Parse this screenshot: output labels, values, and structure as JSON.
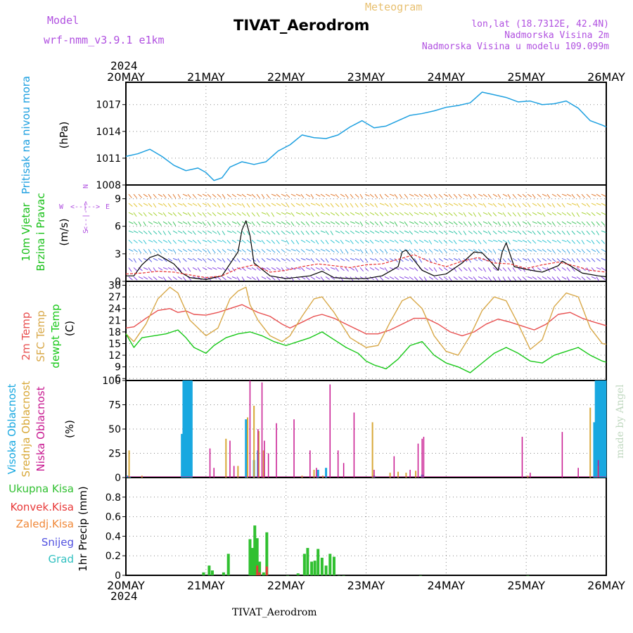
{
  "header": {
    "model_label": "Model",
    "model_name": "wrf-nmm_v3.9.1 e1km",
    "meteogram": "Meteogram",
    "title": "TIVAT_Aerodrom",
    "lonlat": "lon,lat (18.7312E, 42.4N)",
    "height": "Nadmorska Visina 2m",
    "model_height": "Nadmorska Visina u modelu 109.099m",
    "footer_title": "TIVAT_Aerodrom",
    "signature": "made by Angel"
  },
  "colors": {
    "pressure": "#1ea0e0",
    "wind_label": "#18c018",
    "wind_gust": "#000000",
    "wind_speed_dash": "#e83030",
    "temp_2m": "#e85050",
    "temp_sfc": "#d8a848",
    "dewpoint": "#18c818",
    "cloud_high": "#18a8e0",
    "cloud_mid": "#d8a838",
    "cloud_low": "#c81890",
    "precip_total": "#30c030",
    "precip_conv": "#e83838",
    "precip_strat": "#f08838",
    "snow": "#5050e0",
    "hail": "#30c0c0",
    "axis_purple": "#b050e0"
  },
  "chart_data": [
    {
      "type": "line",
      "panel": "pressure",
      "ylabel": [
        "Pritisak na nivou mora",
        "(hPa)"
      ],
      "yticks": [
        1008,
        1011,
        1014,
        1017
      ],
      "ylim": [
        1008,
        1019.5
      ],
      "xlim_days": [
        20,
        26
      ],
      "top_tick_labels": [
        "20MAY",
        "21MAY",
        "22MAY",
        "23MAY",
        "24MAY",
        "25MAY",
        "26MAY"
      ],
      "top_year": "2024",
      "series": [
        {
          "name": "Pritisak na nivou mora",
          "x": [
            20.0,
            20.15,
            20.3,
            20.45,
            20.6,
            20.75,
            20.9,
            21.0,
            21.1,
            21.2,
            21.3,
            21.45,
            21.6,
            21.75,
            21.9,
            22.05,
            22.2,
            22.35,
            22.5,
            22.65,
            22.8,
            22.95,
            23.1,
            23.25,
            23.4,
            23.55,
            23.7,
            23.85,
            24.0,
            24.15,
            24.3,
            24.45,
            24.6,
            24.75,
            24.9,
            25.05,
            25.2,
            25.35,
            25.5,
            25.65,
            25.8,
            25.95,
            26.0
          ],
          "values": [
            1011.2,
            1011.5,
            1012.0,
            1011.2,
            1010.2,
            1009.6,
            1009.9,
            1009.4,
            1008.5,
            1008.8,
            1010.0,
            1010.6,
            1010.3,
            1010.6,
            1011.8,
            1012.5,
            1013.6,
            1013.3,
            1013.2,
            1013.6,
            1014.5,
            1015.2,
            1014.4,
            1014.6,
            1015.2,
            1015.8,
            1016.0,
            1016.3,
            1016.7,
            1016.9,
            1017.2,
            1018.4,
            1018.1,
            1017.8,
            1017.3,
            1017.4,
            1017.0,
            1017.1,
            1017.4,
            1016.6,
            1015.2,
            1014.7,
            1014.5
          ]
        }
      ]
    },
    {
      "type": "line",
      "panel": "wind",
      "ylabel": [
        "10m Vjetar",
        "Brzina i Pravac",
        "(m/s)"
      ],
      "compass": [
        "N",
        "S",
        "W",
        "E"
      ],
      "yticks": [
        0,
        3,
        6,
        9
      ],
      "ylim": [
        0,
        10.5
      ],
      "series": [
        {
          "name": "gust",
          "x": [
            20.0,
            20.1,
            20.2,
            20.3,
            20.4,
            20.5,
            20.6,
            20.7,
            20.8,
            21.0,
            21.2,
            21.4,
            21.45,
            21.5,
            21.55,
            21.6,
            21.8,
            22.0,
            22.3,
            22.45,
            22.6,
            22.8,
            23.0,
            23.2,
            23.4,
            23.45,
            23.5,
            23.6,
            23.7,
            23.85,
            24.0,
            24.2,
            24.35,
            24.45,
            24.55,
            24.65,
            24.7,
            24.75,
            24.85,
            25.0,
            25.2,
            25.4,
            25.45,
            25.55,
            25.7,
            25.9,
            26.0
          ],
          "values": [
            0.6,
            0.6,
            1.8,
            2.6,
            2.9,
            2.4,
            1.9,
            0.9,
            0.4,
            0.2,
            0.6,
            3.2,
            5.6,
            6.6,
            5.0,
            2.0,
            0.6,
            0.3,
            0.6,
            1.1,
            0.4,
            0.3,
            0.3,
            0.6,
            1.6,
            3.2,
            3.4,
            2.3,
            1.2,
            0.6,
            0.8,
            2.0,
            3.2,
            3.1,
            2.2,
            1.2,
            3.2,
            4.2,
            1.6,
            1.3,
            1.0,
            1.7,
            2.2,
            1.7,
            0.9,
            0.6,
            0.5
          ]
        },
        {
          "name": "speed",
          "x": [
            20.0,
            20.2,
            20.4,
            20.6,
            20.8,
            21.0,
            21.2,
            21.4,
            21.6,
            21.8,
            22.0,
            22.2,
            22.4,
            22.6,
            22.8,
            23.0,
            23.2,
            23.4,
            23.6,
            23.8,
            24.0,
            24.2,
            24.4,
            24.6,
            24.8,
            25.0,
            25.2,
            25.4,
            25.6,
            25.8,
            26.0
          ],
          "values": [
            0.8,
            0.9,
            1.1,
            1.0,
            0.7,
            0.4,
            0.6,
            1.4,
            1.8,
            1.0,
            1.2,
            1.6,
            1.9,
            1.7,
            1.5,
            1.8,
            1.9,
            2.4,
            2.9,
            2.1,
            1.6,
            2.2,
            2.6,
            2.0,
            1.9,
            1.4,
            1.8,
            2.1,
            1.7,
            1.2,
            1.0
          ]
        }
      ]
    },
    {
      "type": "line",
      "panel": "temperature",
      "ylabel": [
        "2m Temp",
        "SFC Temp",
        "dewpt Temp",
        "(C)"
      ],
      "yticks": [
        6,
        9,
        12,
        15,
        18,
        21,
        24,
        27,
        30
      ],
      "ylim": [
        5.5,
        31
      ],
      "series": [
        {
          "name": "2m Temp",
          "x": [
            20.0,
            20.1,
            20.25,
            20.4,
            20.55,
            20.65,
            20.75,
            20.85,
            21.0,
            21.15,
            21.3,
            21.45,
            21.55,
            21.65,
            21.8,
            21.95,
            22.05,
            22.2,
            22.35,
            22.45,
            22.6,
            22.8,
            23.0,
            23.15,
            23.3,
            23.45,
            23.6,
            23.75,
            23.9,
            24.05,
            24.2,
            24.35,
            24.5,
            24.65,
            24.8,
            24.95,
            25.1,
            25.25,
            25.4,
            25.55,
            25.7,
            25.85,
            26.0
          ],
          "values": [
            19.0,
            19.3,
            21.5,
            23.5,
            24.0,
            23.0,
            23.4,
            22.5,
            22.3,
            23.0,
            24.0,
            25.0,
            24.0,
            23.0,
            22.0,
            20.0,
            19.0,
            20.5,
            22.0,
            22.5,
            21.5,
            19.5,
            17.5,
            17.5,
            18.5,
            20.0,
            21.5,
            21.5,
            20.0,
            18.0,
            17.0,
            18.0,
            20.0,
            21.3,
            20.5,
            19.5,
            18.5,
            20.0,
            22.5,
            23.0,
            21.5,
            20.5,
            19.6
          ]
        },
        {
          "name": "SFC Temp",
          "x": [
            20.0,
            20.1,
            20.25,
            20.4,
            20.55,
            20.65,
            20.8,
            21.0,
            21.15,
            21.3,
            21.4,
            21.5,
            21.55,
            21.65,
            21.8,
            21.95,
            22.05,
            22.2,
            22.35,
            22.45,
            22.6,
            22.8,
            23.0,
            23.15,
            23.3,
            23.45,
            23.55,
            23.7,
            23.85,
            24.0,
            24.15,
            24.3,
            24.45,
            24.6,
            24.75,
            24.9,
            25.05,
            25.2,
            25.35,
            25.5,
            25.65,
            25.8,
            25.95,
            26.0
          ],
          "values": [
            17.5,
            15.5,
            20.0,
            26.5,
            29.5,
            28.0,
            21.0,
            17.0,
            19.0,
            26.5,
            28.5,
            29.5,
            25.0,
            21.0,
            17.0,
            15.5,
            17.0,
            22.0,
            26.5,
            27.0,
            23.0,
            16.5,
            14.0,
            14.5,
            20.5,
            26.0,
            27.0,
            24.0,
            17.0,
            13.0,
            12.0,
            17.0,
            23.5,
            27.0,
            26.0,
            20.0,
            13.5,
            16.0,
            24.5,
            28.0,
            27.0,
            19.0,
            15.0,
            14.8
          ]
        },
        {
          "name": "dewpt Temp",
          "x": [
            20.0,
            20.1,
            20.2,
            20.35,
            20.5,
            20.65,
            20.75,
            20.85,
            21.0,
            21.1,
            21.25,
            21.4,
            21.55,
            21.7,
            21.85,
            22.0,
            22.15,
            22.3,
            22.45,
            22.6,
            22.75,
            22.9,
            23.0,
            23.1,
            23.25,
            23.4,
            23.55,
            23.7,
            23.85,
            24.0,
            24.15,
            24.3,
            24.45,
            24.6,
            24.75,
            24.9,
            25.05,
            25.2,
            25.35,
            25.5,
            25.65,
            25.8,
            25.95,
            26.0
          ],
          "values": [
            17.5,
            14.0,
            16.5,
            17.0,
            17.5,
            18.5,
            16.5,
            14.0,
            12.5,
            14.5,
            16.5,
            17.5,
            18.0,
            17.0,
            15.5,
            14.5,
            15.5,
            16.5,
            18.0,
            16.0,
            14.0,
            12.5,
            10.5,
            9.5,
            8.5,
            11.0,
            14.5,
            15.5,
            12.0,
            10.0,
            9.0,
            7.5,
            10.0,
            12.5,
            14.0,
            12.5,
            10.5,
            10.0,
            12.0,
            13.0,
            14.0,
            12.0,
            10.5,
            10.2
          ]
        }
      ]
    },
    {
      "type": "bar",
      "panel": "clouds",
      "ylabel": [
        "Visoka Oblacnost",
        "Srednja Oblacnost",
        "Niska Oblacnost",
        "(%)"
      ],
      "yticks": [
        0,
        25,
        50,
        75,
        100
      ],
      "ylim": [
        0,
        100
      ],
      "series": [
        {
          "name": "Visoka Oblacnost",
          "x": [
            20.02,
            20.05,
            20.7,
            20.72,
            20.74,
            20.76,
            20.78,
            20.8,
            20.82,
            21.5,
            21.6,
            21.65,
            22.4,
            22.5,
            23.1,
            23.7,
            25.85,
            25.87,
            25.89,
            25.91,
            25.93,
            25.95,
            25.97,
            25.99
          ],
          "values": [
            2,
            1,
            45,
            100,
            100,
            100,
            100,
            100,
            100,
            60,
            18,
            28,
            8,
            10,
            2,
            3,
            57,
            100,
            100,
            100,
            100,
            100,
            100,
            100
          ]
        },
        {
          "name": "Srednja Oblacnost",
          "x": [
            20.04,
            20.2,
            21.25,
            21.4,
            21.52,
            21.6,
            21.66,
            21.72,
            22.2,
            22.35,
            22.46,
            23.08,
            23.3,
            23.4,
            23.5,
            23.62,
            25.02,
            25.8,
            25.9
          ],
          "values": [
            28,
            2,
            40,
            12,
            62,
            74,
            48,
            28,
            2,
            8,
            2,
            57,
            5,
            6,
            5,
            7,
            2,
            72,
            12
          ]
        },
        {
          "name": "Niska Oblacnost",
          "x": [
            21.05,
            21.1,
            21.3,
            21.35,
            21.55,
            21.65,
            21.7,
            21.73,
            21.78,
            21.88,
            22.1,
            22.3,
            22.38,
            22.55,
            22.65,
            22.72,
            22.85,
            23.1,
            23.35,
            23.55,
            23.65,
            23.7,
            23.72,
            24.95,
            25.05,
            25.45,
            25.65,
            25.9
          ],
          "values": [
            30,
            10,
            38,
            12,
            100,
            50,
            98,
            38,
            25,
            56,
            60,
            28,
            10,
            96,
            28,
            15,
            67,
            8,
            22,
            8,
            35,
            40,
            42,
            42,
            5,
            47,
            10,
            18
          ]
        }
      ]
    },
    {
      "type": "bar",
      "panel": "precipitation",
      "ylabel": [
        "1hr Precip (mm)"
      ],
      "legend": [
        "Ukupna Kisa",
        "Konvek.Kisa",
        "Zaledj.Kisa",
        "Snijeg",
        "Grad"
      ],
      "yticks": [
        0,
        0.2,
        0.4,
        0.6,
        0.8
      ],
      "ylim": [
        0,
        1.0
      ],
      "xlabel_ticks": [
        "20MAY",
        "21MAY",
        "22MAY",
        "23MAY",
        "24MAY",
        "25MAY",
        "26MAY"
      ],
      "bottom_year": "2024",
      "series": [
        {
          "name": "Ukupna Kisa",
          "x": [
            20.97,
            21.04,
            21.08,
            21.22,
            21.28,
            21.55,
            21.58,
            21.61,
            21.64,
            21.67,
            21.72,
            21.76,
            22.02,
            22.15,
            22.23,
            22.27,
            22.32,
            22.36,
            22.4,
            22.45,
            22.5,
            22.55,
            22.6,
            22.66,
            22.72,
            23.68,
            25.02
          ],
          "values": [
            0.03,
            0.1,
            0.05,
            0.03,
            0.22,
            0.37,
            0.28,
            0.51,
            0.38,
            0.14,
            0.03,
            0.44,
            0.0,
            0.02,
            0.22,
            0.28,
            0.14,
            0.15,
            0.27,
            0.18,
            0.1,
            0.22,
            0.19,
            0.0,
            0.0,
            0.0,
            0.0
          ]
        },
        {
          "name": "Konvek.Kisa",
          "x": [
            21.64,
            21.67,
            21.76
          ],
          "values": [
            0.1,
            0.03,
            0.09
          ]
        }
      ]
    }
  ]
}
